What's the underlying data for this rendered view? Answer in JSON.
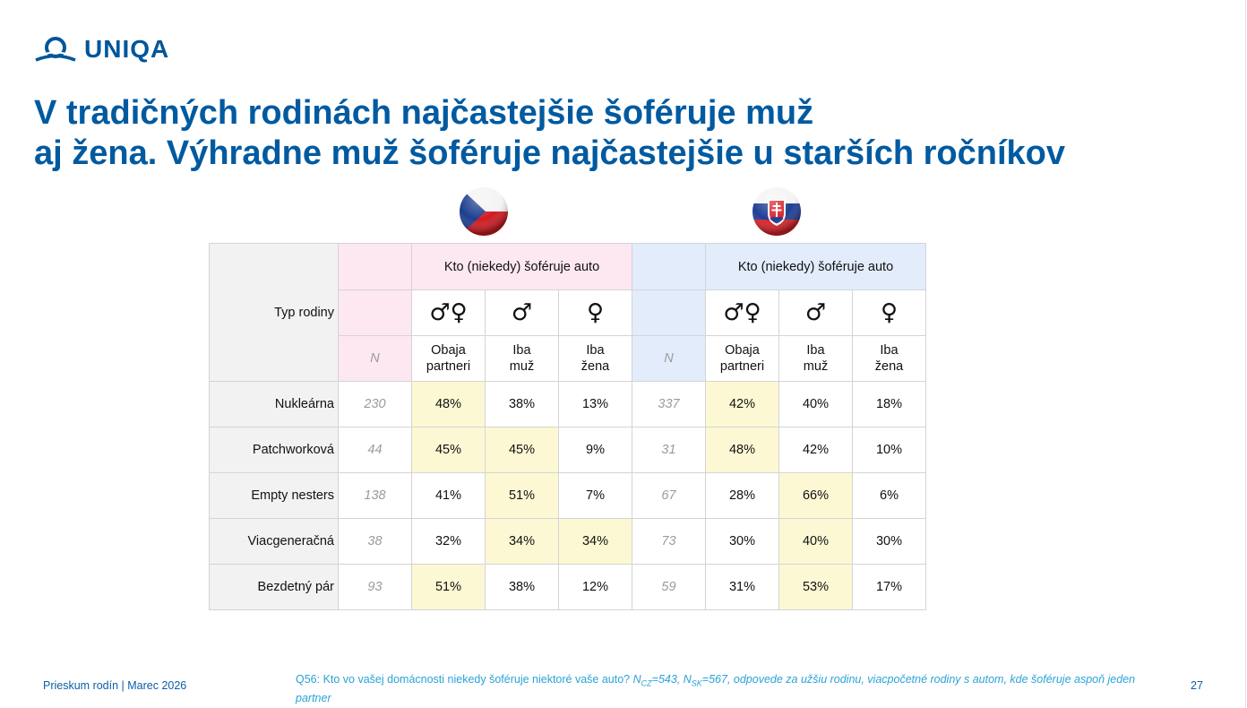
{
  "logo": {
    "text": "UNIQA",
    "color": "#00569a"
  },
  "title": {
    "line1": "V tradičných rodinách najčastejšie šoféruje muž",
    "line2": "aj žena. Výhradne muž šoféruje najčastejšie u starších ročníkov",
    "color": "#005aa0"
  },
  "flags": {
    "cz": "czech-flag-icon",
    "sk": "slovak-flag-icon"
  },
  "table": {
    "row_header": "Typ rodiny",
    "group_header_cz": "Kto (niekedy) šoféruje auto",
    "group_header_sk": "Kto (niekedy) šoféruje auto",
    "symbols": {
      "both": "♂♀",
      "male": "♂",
      "female": "♀"
    },
    "n_label": "N",
    "col_labels": {
      "both": [
        "Obaja",
        "partneri"
      ],
      "male": [
        "Iba",
        "muž"
      ],
      "female": [
        "Iba",
        "žena"
      ]
    },
    "rows": [
      {
        "label": "Nukleárna",
        "cz_n": "230",
        "cz": [
          "48%",
          "38%",
          "13%"
        ],
        "cz_hl": [
          true,
          false,
          false
        ],
        "sk_n": "337",
        "sk": [
          "42%",
          "40%",
          "18%"
        ],
        "sk_hl": [
          true,
          false,
          false
        ]
      },
      {
        "label": "Patchworková",
        "cz_n": "44",
        "cz": [
          "45%",
          "45%",
          "9%"
        ],
        "cz_hl": [
          true,
          true,
          false
        ],
        "sk_n": "31",
        "sk": [
          "48%",
          "42%",
          "10%"
        ],
        "sk_hl": [
          true,
          false,
          false
        ]
      },
      {
        "label": "Empty nesters",
        "cz_n": "138",
        "cz": [
          "41%",
          "51%",
          "7%"
        ],
        "cz_hl": [
          false,
          true,
          false
        ],
        "sk_n": "67",
        "sk": [
          "28%",
          "66%",
          "6%"
        ],
        "sk_hl": [
          false,
          true,
          false
        ]
      },
      {
        "label": "Viacgeneračná",
        "cz_n": "38",
        "cz": [
          "32%",
          "34%",
          "34%"
        ],
        "cz_hl": [
          false,
          true,
          true
        ],
        "sk_n": "73",
        "sk": [
          "30%",
          "40%",
          "30%"
        ],
        "sk_hl": [
          false,
          true,
          false
        ]
      },
      {
        "label": "Bezdetný pár",
        "cz_n": "93",
        "cz": [
          "51%",
          "38%",
          "12%"
        ],
        "cz_hl": [
          true,
          false,
          false
        ],
        "sk_n": "59",
        "sk": [
          "31%",
          "53%",
          "17%"
        ],
        "sk_hl": [
          false,
          true,
          false
        ]
      }
    ]
  },
  "footer": {
    "left": "Prieskum rodín | Marec 2026",
    "note_start": "Q56: Kto vo vašej domácnosti niekedy šoféruje niektoré vaše auto? ",
    "n_cz_main": "N",
    "n_cz_sub": "CZ",
    "n_cz_value": "=543, ",
    "n_sk_main": "N",
    "n_sk_sub": "SK",
    "n_sk_value": "=567, odpovede za užšiu rodinu, viacpočetné rodiny s autom, kde šoféruje aspoň jeden partner",
    "page_number": "27"
  }
}
